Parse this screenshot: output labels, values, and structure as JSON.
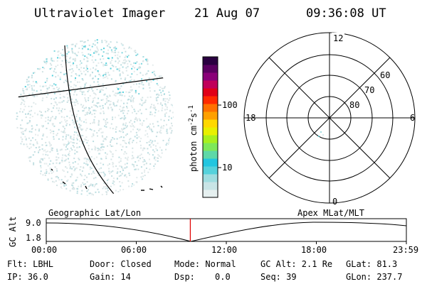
{
  "header": {
    "title": "Ultraviolet Imager",
    "date": "21 Aug 07",
    "time": "09:36:08 UT"
  },
  "colorbar": {
    "unit": "photon cm⁻²s⁻¹",
    "unit_base": "photon cm",
    "unit_exp1": "-2",
    "unit_mid": "s",
    "unit_exp2": "-1",
    "ticks": [
      {
        "label": "100",
        "value": 100
      },
      {
        "label": "10",
        "value": 10
      }
    ],
    "colors": [
      "#e6f0f0",
      "#c8e4e6",
      "#9fdde0",
      "#55d2dc",
      "#22c6e0",
      "#5ed8a8",
      "#7ee85a",
      "#a8f01e",
      "#e8f000",
      "#ffd800",
      "#ffa000",
      "#ff7000",
      "#ff2a00",
      "#e00018",
      "#c0005a",
      "#8a0078",
      "#5a0060",
      "#2a0040"
    ]
  },
  "polar_plot": {
    "mlt_labels": {
      "top": "12",
      "left": "18",
      "right": "6",
      "bottom": "0"
    },
    "lat_labels": [
      "60",
      "70",
      "80"
    ]
  },
  "gc_alt_plot": {
    "ylabel": "GC Alt",
    "yticks": [
      "9.0",
      "1.8"
    ],
    "left_label": "Geographic Lat/Lon",
    "right_label": "Apex MLat/MLT",
    "xticks": [
      "00:00",
      "06:00",
      "12:00",
      "18:00",
      "23:59"
    ],
    "marker_time_hours": 9.6
  },
  "info": {
    "filter": "Flt: LBHL",
    "ip": "IP: 36.0",
    "door": "Door: Closed",
    "gain": "Gain: 14",
    "mode": "Mode: Normal",
    "dsp_label": "Dsp:",
    "dsp_value": "0.0",
    "gc_alt": "GC Alt: 2.1 Re",
    "seq": "Seq: 39",
    "glat": "GLat: 81.3",
    "glon": "GLon: 237.7"
  }
}
